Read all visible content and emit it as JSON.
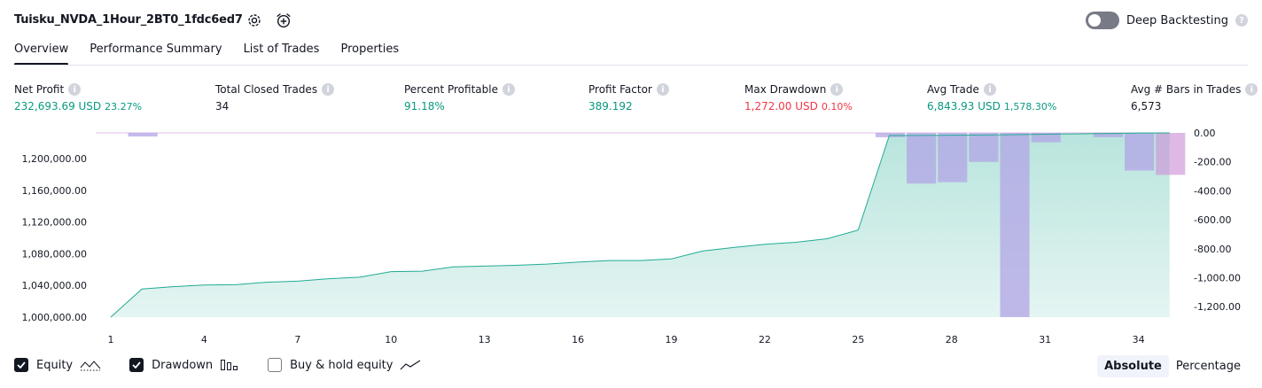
{
  "header": {
    "title": "Tuisku_NVDA_1Hour_2BT0_1fdc6ed7",
    "deep_backtesting_label": "Deep Backtesting"
  },
  "tabs": [
    {
      "label": "Overview",
      "active": true
    },
    {
      "label": "Performance Summary"
    },
    {
      "label": "List of Trades"
    },
    {
      "label": "Properties"
    }
  ],
  "stats": {
    "net_profit": {
      "label": "Net Profit",
      "value": "232,693.69 USD",
      "sub": "23.27%"
    },
    "total_closed_trades": {
      "label": "Total Closed Trades",
      "value": "34"
    },
    "percent_profitable": {
      "label": "Percent Profitable",
      "value": "91.18%"
    },
    "profit_factor": {
      "label": "Profit Factor",
      "value": "389.192"
    },
    "max_drawdown": {
      "label": "Max Drawdown",
      "value": "1,272.00 USD",
      "sub": "0.10%"
    },
    "avg_trade": {
      "label": "Avg Trade",
      "value": "6,843.93 USD",
      "sub": "1,578.30%"
    },
    "avg_bars": {
      "label": "Avg # Bars in Trades",
      "value": "6,573"
    }
  },
  "legend": {
    "equity": "Equity",
    "drawdown": "Drawdown",
    "buy_hold": "Buy & hold equity"
  },
  "modes": {
    "absolute": "Absolute",
    "percentage": "Percentage"
  },
  "colors": {
    "positive": "#089981",
    "negative": "#f23645",
    "equity_line": "#22ab94",
    "drawdown_bar": "#b2a4e6",
    "drawdown_edge": "#ce93d8"
  },
  "chart_data": {
    "type": "area",
    "x_ticks": [
      "1",
      "4",
      "7",
      "10",
      "13",
      "16",
      "19",
      "22",
      "25",
      "28",
      "31",
      "34"
    ],
    "left_axis": {
      "ticks": [
        "1,000,000.00",
        "1,040,000.00",
        "1,080,000.00",
        "1,120,000.00",
        "1,160,000.00",
        "1,200,000.00"
      ],
      "ylim": [
        1000000,
        1232694
      ]
    },
    "right_axis": {
      "ticks": [
        "0.00",
        "-200.00",
        "-400.00",
        "-600.00",
        "-800.00",
        "-1,000.00",
        "-1,200.00"
      ],
      "ylim": [
        -1272,
        0
      ]
    },
    "series": [
      {
        "name": "Equity",
        "x": [
          1,
          2,
          3,
          4,
          5,
          6,
          7,
          8,
          9,
          10,
          11,
          12,
          13,
          14,
          15,
          16,
          17,
          18,
          19,
          20,
          21,
          22,
          23,
          24,
          25,
          26,
          27,
          28,
          29,
          30,
          31,
          32,
          33,
          34,
          35
        ],
        "values": [
          1000000,
          1035500,
          1038500,
          1040500,
          1041000,
          1044000,
          1045500,
          1048500,
          1050500,
          1057500,
          1058000,
          1063500,
          1064500,
          1065500,
          1067000,
          1069500,
          1071500,
          1071500,
          1073500,
          1083500,
          1088000,
          1092000,
          1094500,
          1099000,
          1110000,
          1229500,
          1229500,
          1229800,
          1230000,
          1230500,
          1231000,
          1231500,
          1232000,
          1232500,
          1232694
        ]
      },
      {
        "name": "Drawdown",
        "x": [
          1,
          2,
          3,
          4,
          5,
          6,
          7,
          8,
          9,
          10,
          11,
          12,
          13,
          14,
          15,
          16,
          17,
          18,
          19,
          20,
          21,
          22,
          23,
          24,
          25,
          26,
          27,
          28,
          29,
          30,
          31,
          32,
          33,
          34,
          35
        ],
        "values": [
          0,
          -25,
          0,
          0,
          0,
          0,
          0,
          0,
          0,
          0,
          0,
          0,
          0,
          0,
          0,
          0,
          0,
          0,
          0,
          0,
          0,
          0,
          0,
          0,
          0,
          -30,
          -350,
          -340,
          -200,
          -1272,
          -65,
          0,
          -30,
          -260,
          -290
        ]
      }
    ]
  }
}
